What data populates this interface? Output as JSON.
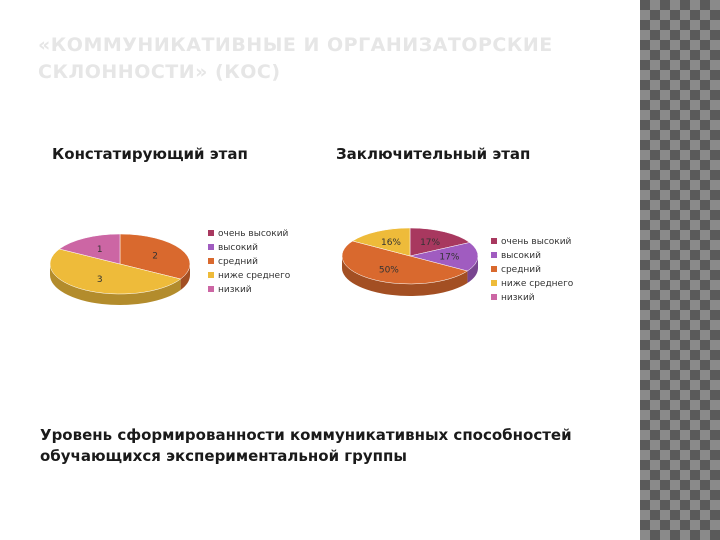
{
  "slide": {
    "title": "«КОММУНИКАТИВНЫЕ И ОРГАНИЗАТОРСКИЕ СКЛОННОСТИ» (КОС)",
    "caption": "Уровень сформированности коммуникативных способностей\n обучающихся экспериментальной группы"
  },
  "colors": {
    "очень высокий": "#a8385f",
    "высокий": "#a05cc0",
    "средний": "#d9692e",
    "ниже среднего": "#eebb3a",
    "низкий": "#cc66a4"
  },
  "chart_data": [
    {
      "type": "pie",
      "title": "Констатирующий этап",
      "categories": [
        "очень высокий",
        "высокий",
        "средний",
        "ниже среднего",
        "низкий"
      ],
      "values": [
        0,
        0,
        2,
        3,
        1
      ],
      "labels": [
        "",
        "",
        "2",
        "3",
        "1"
      ],
      "legend": "right",
      "style": "3d"
    },
    {
      "type": "pie",
      "title": "Заключительный этап",
      "categories": [
        "очень высокий",
        "высокий",
        "средний",
        "ниже среднего",
        "низкий"
      ],
      "values": [
        17,
        17,
        50,
        16,
        0
      ],
      "labels": [
        "17%",
        "17%",
        "50%",
        "16%",
        ""
      ],
      "legend": "right",
      "style": "3d"
    }
  ]
}
